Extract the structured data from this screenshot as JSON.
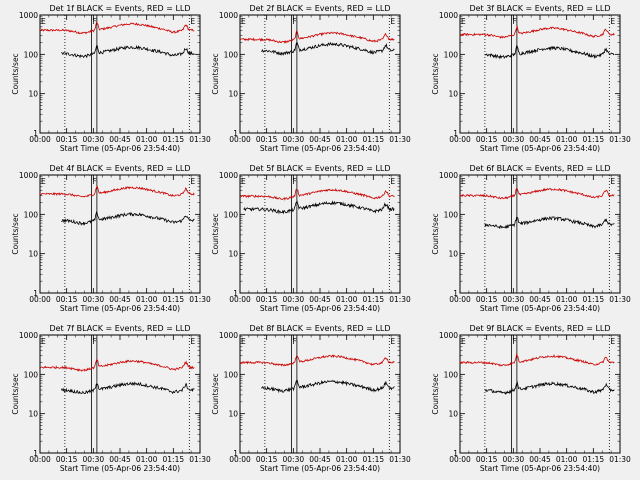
{
  "chart_data": {
    "type": "line",
    "shared": {
      "xlabel": "Start Time (05-Apr-06 23:54:40)",
      "ylabel": "Counts/sec",
      "x_ticks": [
        "00:00",
        "00:15",
        "00:30",
        "00:45",
        "01:00",
        "01:15",
        "01:30"
      ],
      "y_ticks": [
        "1",
        "10",
        "100",
        "1000"
      ],
      "ylim": [
        1,
        1000
      ],
      "x_range_minutes": [
        0,
        90
      ],
      "y_scale": "log",
      "events_color": "#000000",
      "lld_color": "#cc0000",
      "vertical_lines_dotted_minutes": [
        14,
        84
      ],
      "vertical_lines_solid_minutes": [
        29,
        32
      ],
      "marker_E_minutes": [
        0,
        84
      ],
      "marker_F_minutes": [
        29
      ]
    },
    "panels": [
      {
        "title": "Det 1f BLACK = Events, RED = LLD",
        "events_base": 105,
        "lld_base": 410,
        "events_start": 12
      },
      {
        "title": "Det 2f BLACK = Events, RED = LLD",
        "events_base": 125,
        "lld_base": 240,
        "events_start": 12
      },
      {
        "title": "Det 3f BLACK = Events, RED = LLD",
        "events_base": 100,
        "lld_base": 320,
        "events_start": 14
      },
      {
        "title": "Det 4f BLACK = Events, RED = LLD",
        "events_base": 70,
        "lld_base": 330,
        "events_start": 12
      },
      {
        "title": "Det 5f BLACK = Events, RED = LLD",
        "events_base": 135,
        "lld_base": 290,
        "events_start": 2
      },
      {
        "title": "Det 6f BLACK = Events, RED = LLD",
        "events_base": 55,
        "lld_base": 300,
        "events_start": 14
      },
      {
        "title": "Det 7f BLACK = Events, RED = LLD",
        "events_base": 40,
        "lld_base": 150,
        "events_start": 12
      },
      {
        "title": "Det 8f BLACK = Events, RED = LLD",
        "events_base": 45,
        "lld_base": 200,
        "events_start": 12
      },
      {
        "title": "Det 9f BLACK = Events, RED = LLD",
        "events_base": 40,
        "lld_base": 200,
        "events_start": 14
      }
    ]
  }
}
